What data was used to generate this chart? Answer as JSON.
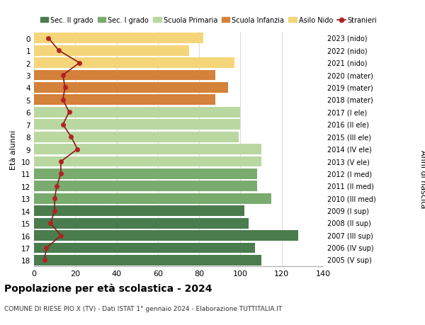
{
  "ages": [
    18,
    17,
    16,
    15,
    14,
    13,
    12,
    11,
    10,
    9,
    8,
    7,
    6,
    5,
    4,
    3,
    2,
    1,
    0
  ],
  "years": [
    "2005 (V sup)",
    "2006 (IV sup)",
    "2007 (III sup)",
    "2008 (II sup)",
    "2009 (I sup)",
    "2010 (III med)",
    "2011 (II med)",
    "2012 (I med)",
    "2013 (V ele)",
    "2014 (IV ele)",
    "2015 (III ele)",
    "2016 (II ele)",
    "2017 (I ele)",
    "2018 (mater)",
    "2019 (mater)",
    "2020 (mater)",
    "2021 (nido)",
    "2022 (nido)",
    "2023 (nido)"
  ],
  "bar_values": [
    110,
    107,
    128,
    104,
    102,
    115,
    108,
    108,
    110,
    110,
    99,
    100,
    100,
    88,
    94,
    88,
    97,
    75,
    82
  ],
  "stranieri": [
    5,
    6,
    13,
    8,
    10,
    10,
    11,
    13,
    13,
    21,
    18,
    14,
    17,
    14,
    15,
    14,
    22,
    12,
    7
  ],
  "bar_colors": [
    "#4a7c4e",
    "#4a7c4e",
    "#4a7c4e",
    "#4a7c4e",
    "#4a7c4e",
    "#7aab6e",
    "#7aab6e",
    "#7aab6e",
    "#b8d8a0",
    "#b8d8a0",
    "#b8d8a0",
    "#b8d8a0",
    "#b8d8a0",
    "#d4813a",
    "#d4813a",
    "#d4813a",
    "#f5d57a",
    "#f5d57a",
    "#f5d57a"
  ],
  "legend_labels": [
    "Sec. II grado",
    "Sec. I grado",
    "Scuola Primaria",
    "Scuola Infanzia",
    "Asilo Nido",
    "Stranieri"
  ],
  "legend_colors": [
    "#4a7c4e",
    "#7aab6e",
    "#b8d8a0",
    "#d4813a",
    "#f5d57a",
    "#b22222"
  ],
  "ylabel_left": "Età alunni",
  "ylabel_right": "Anni di nascita",
  "title": "Popolazione per età scolastica - 2024",
  "subtitle": "COMUNE DI RIESE PIO X (TV) - Dati ISTAT 1° gennaio 2024 - Elaborazione TUTTITALIA.IT",
  "xlim": [
    0,
    140
  ],
  "xticks": [
    0,
    20,
    40,
    60,
    80,
    100,
    120,
    140
  ],
  "stranieri_color": "#b22222",
  "stranieri_line_color": "#8b1a1a",
  "grid_color": "#dddddd"
}
